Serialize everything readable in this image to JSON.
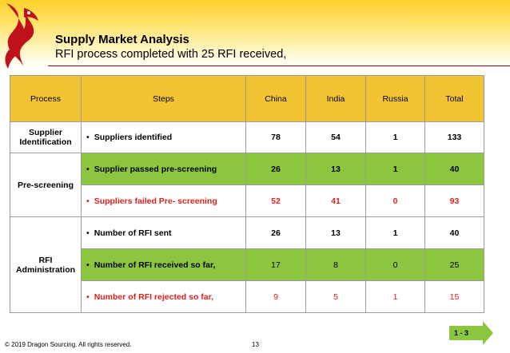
{
  "header": {
    "title": "Supply Market Analysis",
    "subtitle": "RFI process completed with 25 RFI received,"
  },
  "colors": {
    "header_yellow": "#ffd12a",
    "table_header": "#f2c433",
    "highlight_green": "#8cc63f",
    "alert_red": "#e0211b",
    "logo_red": "#c0121c"
  },
  "logo": {
    "icon": "dragon-logo-icon"
  },
  "table": {
    "columns": [
      "Process",
      "Steps",
      "China",
      "India",
      "Russia",
      "Total"
    ],
    "groups": [
      {
        "process": "Supplier Identification",
        "rows": [
          {
            "step": "Suppliers identified",
            "china": "78",
            "india": "54",
            "russia": "1",
            "total": "133"
          }
        ]
      },
      {
        "process": "Pre-screening",
        "rows": [
          {
            "step": "Supplier passed pre-screening",
            "china": "26",
            "india": "13",
            "russia": "1",
            "total": "40"
          },
          {
            "step": "Suppliers failed Pre- screening",
            "china": "52",
            "india": "41",
            "russia": "0",
            "total": "93"
          }
        ]
      },
      {
        "process": "RFI Administration",
        "rows": [
          {
            "step": "Number of RFI sent",
            "china": "26",
            "india": "13",
            "russia": "1",
            "total": "40"
          },
          {
            "step": "Number of RFI received so far,",
            "china": "17",
            "india": "8",
            "russia": "0",
            "total": "25"
          },
          {
            "step": "Number of RFI rejected so far,",
            "china": "9",
            "india": "5",
            "russia": "1",
            "total": "15"
          }
        ]
      }
    ],
    "bullet": "•"
  },
  "footer": {
    "copyright": "© 2019 Dragon Sourcing. All rights reserved.",
    "page_number": "13",
    "badge": "1 - 3"
  }
}
